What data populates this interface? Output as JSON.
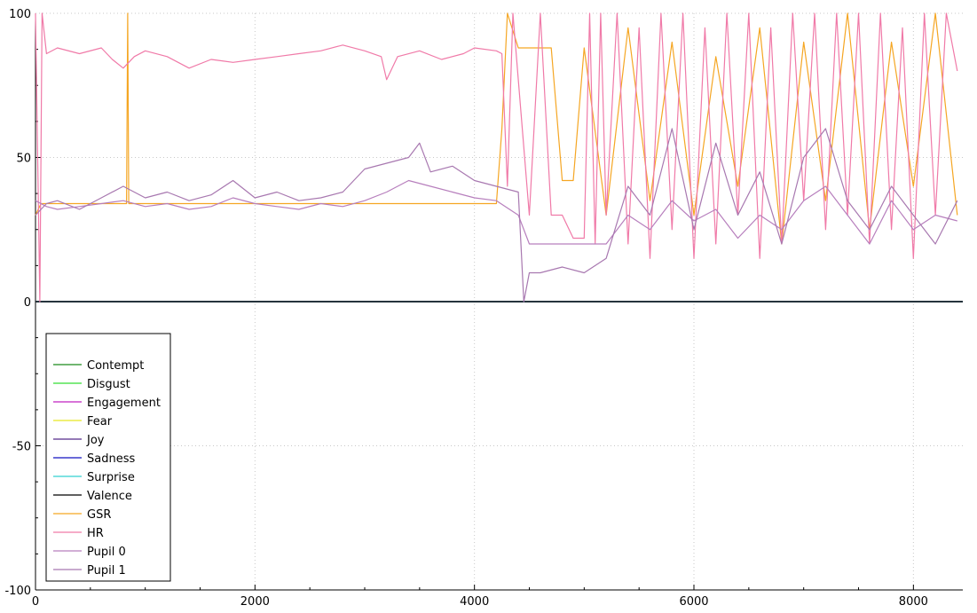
{
  "chart_data": {
    "type": "line",
    "xlim": [
      0,
      8450
    ],
    "ylim": [
      -100,
      100
    ],
    "x_ticks": [
      {
        "value": 0,
        "label": "0"
      },
      {
        "value": 2000,
        "label": "2000"
      },
      {
        "value": 4000,
        "label": "4000"
      },
      {
        "value": 6000,
        "label": "6000"
      },
      {
        "value": 8000,
        "label": "8000"
      }
    ],
    "y_ticks": [
      {
        "value": 100,
        "label": "100"
      },
      {
        "value": 50,
        "label": "50"
      },
      {
        "value": 0,
        "label": "0"
      },
      {
        "value": -50,
        "label": "-50"
      },
      {
        "value": -100,
        "label": "-100"
      }
    ],
    "grid": true,
    "legend_position": "bottom-left",
    "series": [
      {
        "name": "Contempt",
        "color": "#1a8a1a",
        "x": [
          0,
          8450
        ],
        "y": [
          0,
          0
        ]
      },
      {
        "name": "Disgust",
        "color": "#33dd33",
        "x": [
          0,
          8450
        ],
        "y": [
          0,
          0
        ]
      },
      {
        "name": "Engagement",
        "color": "#c020c0",
        "x": [
          0,
          8450
        ],
        "y": [
          0,
          0
        ]
      },
      {
        "name": "Fear",
        "color": "#e8e820",
        "x": [
          0,
          8450
        ],
        "y": [
          0,
          0
        ]
      },
      {
        "name": "Joy",
        "color": "#552a8a",
        "x": [
          0,
          8450
        ],
        "y": [
          0,
          0
        ]
      },
      {
        "name": "Sadness",
        "color": "#1010c0",
        "x": [
          0,
          8450
        ],
        "y": [
          0,
          0
        ]
      },
      {
        "name": "Surprise",
        "color": "#30d0d0",
        "x": [
          0,
          8450
        ],
        "y": [
          0,
          0
        ]
      },
      {
        "name": "Valence",
        "color": "#000000",
        "x": [
          0,
          8450
        ],
        "y": [
          0,
          0
        ]
      },
      {
        "name": "GSR",
        "color": "#f5a623",
        "x": [
          0,
          50,
          80,
          830,
          840,
          850,
          1800,
          3200,
          4200,
          4250,
          4300,
          4400,
          4500,
          4600,
          4700,
          4800,
          4900,
          5000,
          5200,
          5400,
          5600,
          5800,
          6000,
          6200,
          6400,
          6600,
          6800,
          7000,
          7200,
          7400,
          7600,
          7800,
          8000,
          8200,
          8400
        ],
        "y": [
          30,
          34,
          34,
          34,
          100,
          34,
          34,
          34,
          34,
          60,
          100,
          88,
          88,
          88,
          88,
          42,
          42,
          88,
          30,
          95,
          35,
          90,
          30,
          85,
          40,
          95,
          20,
          90,
          35,
          100,
          25,
          90,
          40,
          100,
          30
        ]
      },
      {
        "name": "HR",
        "color": "#f07aa8",
        "x": [
          0,
          40,
          60,
          100,
          200,
          400,
          600,
          700,
          800,
          900,
          1000,
          1200,
          1400,
          1600,
          1800,
          2000,
          2200,
          2400,
          2600,
          2800,
          3000,
          3150,
          3200,
          3300,
          3500,
          3700,
          3900,
          4000,
          4200,
          4250,
          4300,
          4350,
          4500,
          4600,
          4700,
          4800,
          4900,
          5000,
          5050,
          5100,
          5150,
          5200,
          5300,
          5400,
          5500,
          5600,
          5700,
          5800,
          5900,
          6000,
          6100,
          6200,
          6300,
          6400,
          6500,
          6600,
          6700,
          6800,
          6900,
          7000,
          7100,
          7200,
          7300,
          7400,
          7500,
          7600,
          7700,
          7800,
          7900,
          8000,
          8100,
          8200,
          8300,
          8400
        ],
        "y": [
          100,
          0,
          100,
          86,
          88,
          86,
          88,
          84,
          81,
          85,
          87,
          85,
          81,
          84,
          83,
          84,
          85,
          86,
          87,
          89,
          87,
          85,
          77,
          85,
          87,
          84,
          86,
          88,
          87,
          86,
          40,
          100,
          30,
          100,
          30,
          30,
          22,
          22,
          100,
          20,
          100,
          30,
          100,
          20,
          95,
          15,
          100,
          25,
          100,
          15,
          95,
          20,
          100,
          30,
          100,
          15,
          95,
          20,
          100,
          35,
          100,
          25,
          100,
          30,
          100,
          20,
          100,
          25,
          95,
          15,
          100,
          30,
          100,
          80
        ]
      },
      {
        "name": "Pupil 0",
        "color": "#b77fbd",
        "x": [
          0,
          100,
          200,
          400,
          600,
          800,
          1000,
          1200,
          1400,
          1600,
          1800,
          2000,
          2200,
          2400,
          2600,
          2800,
          3000,
          3200,
          3400,
          3600,
          3800,
          4000,
          4200,
          4400,
          4500,
          4600,
          4800,
          5000,
          5200,
          5400,
          5600,
          5800,
          6000,
          6200,
          6400,
          6600,
          6800,
          7000,
          7200,
          7400,
          7600,
          7800,
          8000,
          8200,
          8400
        ],
        "y": [
          35,
          33,
          32,
          33,
          34,
          35,
          33,
          34,
          32,
          33,
          36,
          34,
          33,
          32,
          34,
          33,
          35,
          38,
          42,
          40,
          38,
          36,
          35,
          30,
          20,
          20,
          20,
          20,
          20,
          30,
          25,
          35,
          28,
          32,
          22,
          30,
          25,
          35,
          40,
          30,
          20,
          35,
          25,
          30,
          28
        ]
      },
      {
        "name": "Pupil 1",
        "color": "#a878b0",
        "x": [
          0,
          100,
          200,
          400,
          600,
          800,
          1000,
          1200,
          1400,
          1600,
          1800,
          2000,
          2200,
          2400,
          2600,
          2800,
          3000,
          3200,
          3400,
          3500,
          3600,
          3800,
          4000,
          4200,
          4400,
          4450,
          4500,
          4600,
          4800,
          5000,
          5200,
          5400,
          5600,
          5800,
          6000,
          6200,
          6400,
          6600,
          6800,
          7000,
          7200,
          7400,
          7600,
          7800,
          8000,
          8200,
          8400
        ],
        "y": [
          30,
          34,
          35,
          32,
          36,
          40,
          36,
          38,
          35,
          37,
          42,
          36,
          38,
          35,
          36,
          38,
          46,
          48,
          50,
          55,
          45,
          47,
          42,
          40,
          38,
          0,
          10,
          10,
          12,
          10,
          15,
          40,
          30,
          60,
          25,
          55,
          30,
          45,
          20,
          50,
          60,
          35,
          25,
          40,
          30,
          20,
          35
        ]
      }
    ]
  }
}
